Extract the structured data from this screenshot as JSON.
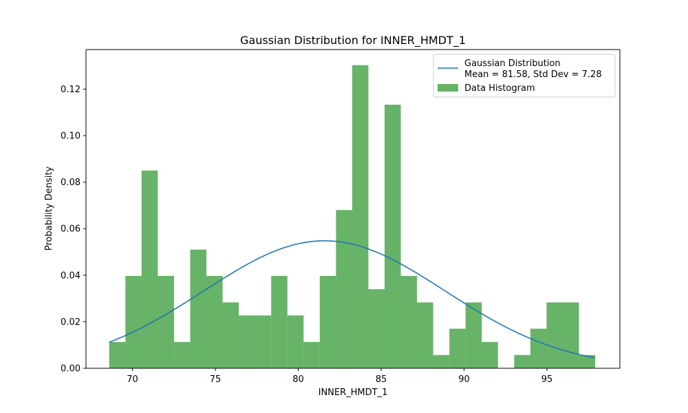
{
  "chart_data": {
    "type": "bar",
    "title": "Gaussian Distribution for INNER_HMDT_1",
    "xlabel": "INNER_HMDT_1",
    "ylabel": "Probability Density",
    "xlim": [
      67.2,
      99.4
    ],
    "ylim": [
      0,
      0.137
    ],
    "xticks": [
      70,
      75,
      80,
      85,
      90,
      95
    ],
    "yticks": [
      0.0,
      0.02,
      0.04,
      0.06,
      0.08,
      0.1,
      0.12
    ],
    "grid": false,
    "legend_position": "top-right",
    "histogram": {
      "name": "Data Histogram",
      "color": "#4ca64c",
      "bin_start": 68.6,
      "bin_width": 0.977,
      "values": [
        0.0113,
        0.0397,
        0.085,
        0.0397,
        0.0113,
        0.051,
        0.0397,
        0.0283,
        0.0227,
        0.0227,
        0.0397,
        0.0227,
        0.0113,
        0.0397,
        0.068,
        0.1303,
        0.034,
        0.1133,
        0.0397,
        0.0283,
        0.0057,
        0.017,
        0.0283,
        0.0113,
        0.0,
        0.0057,
        0.017,
        0.0283,
        0.0283,
        0.0057
      ]
    },
    "gaussian": {
      "name_line1": "Gaussian Distribution",
      "name_line2": "Mean = 81.58, Std Dev = 7.28",
      "color": "#1f77b4",
      "mean": 81.58,
      "std": 7.28,
      "x_range": [
        68.6,
        97.9
      ]
    }
  }
}
